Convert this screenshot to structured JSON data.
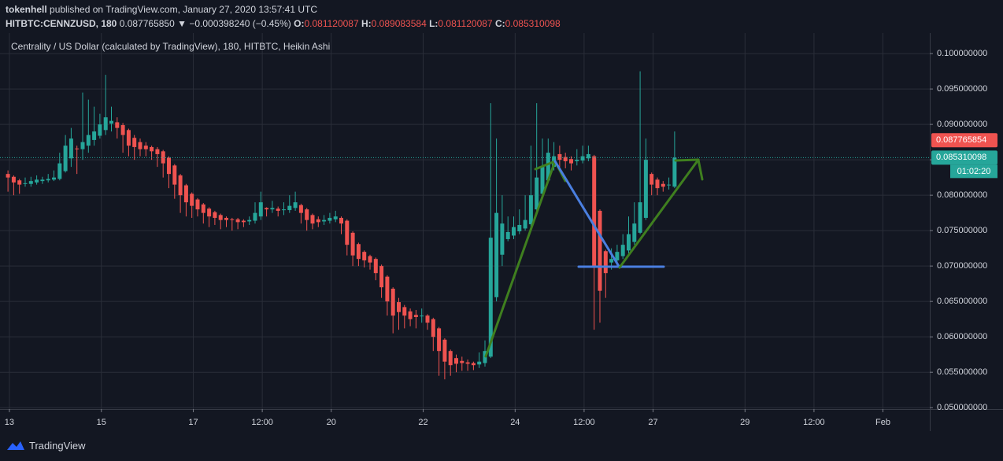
{
  "header": {
    "author": "tokenhell",
    "published": "published on TradingView.com, January 27, 2020 13:57:41 UTC",
    "symbol": "HITBTC:CENNZUSD, 180",
    "price": "0.087765850",
    "change": "▼ −0.000398240 (−0.45%)",
    "o_label": "O:",
    "o": "0.081120087",
    "h_label": "H:",
    "h": "0.089083584",
    "l_label": "L:",
    "l": "0.081120087",
    "c_label": "C:",
    "c": "0.085310098"
  },
  "chart_data": {
    "type": "candlestick",
    "title": "Centrality / US Dollar (calculated by TradingView), 180, HITBTC, Heikin Ashi",
    "up_color": "#26a69a",
    "down_color": "#ef5350",
    "grid": true,
    "xlim": [
      -0.7,
      160.4
    ],
    "ylim": [
      0.0498,
      0.1029
    ],
    "xticks": [
      {
        "value": 0.25,
        "label": "13"
      },
      {
        "value": 16.25,
        "label": "15"
      },
      {
        "value": 32.25,
        "label": "17"
      },
      {
        "value": 44.25,
        "label": "12:00"
      },
      {
        "value": 56.25,
        "label": "20"
      },
      {
        "value": 72.25,
        "label": "22"
      },
      {
        "value": 88.25,
        "label": "24"
      },
      {
        "value": 100.25,
        "label": "12:00"
      },
      {
        "value": 112.25,
        "label": "27"
      },
      {
        "value": 128.25,
        "label": "29"
      },
      {
        "value": 140.25,
        "label": "12:00"
      },
      {
        "value": 152.25,
        "label": "Feb"
      }
    ],
    "yticks": [
      {
        "value": 0.05,
        "label": "0.050000000"
      },
      {
        "value": 0.055,
        "label": "0.055000000"
      },
      {
        "value": 0.06,
        "label": "0.060000000"
      },
      {
        "value": 0.065,
        "label": "0.065000000"
      },
      {
        "value": 0.07,
        "label": "0.070000000"
      },
      {
        "value": 0.075,
        "label": "0.075000000"
      },
      {
        "value": 0.08,
        "label": "0.080000000"
      },
      {
        "value": 0.085,
        "label": "0.085000000"
      },
      {
        "value": 0.09,
        "label": "0.090000000"
      },
      {
        "value": 0.095,
        "label": "0.095000000"
      },
      {
        "value": 0.1,
        "label": "0.100000000"
      }
    ],
    "price_markers": [
      {
        "value": 0.087765854,
        "color": "#ef5350"
      },
      {
        "value": 0.085310098,
        "color": "#26a69a"
      }
    ],
    "countdown": "01:02:20",
    "ohlc": [
      [
        0.083,
        0.0835,
        0.0805,
        0.0825
      ],
      [
        0.0826,
        0.0828,
        0.08,
        0.0818
      ],
      [
        0.0821,
        0.0823,
        0.0802,
        0.0815
      ],
      [
        0.0816,
        0.0825,
        0.0812,
        0.0817
      ],
      [
        0.0816,
        0.0826,
        0.0812,
        0.082
      ],
      [
        0.0818,
        0.0828,
        0.0815,
        0.0822
      ],
      [
        0.082,
        0.0826,
        0.0816,
        0.0822
      ],
      [
        0.0821,
        0.083,
        0.0818,
        0.0823
      ],
      [
        0.0822,
        0.0835,
        0.082,
        0.0825
      ],
      [
        0.0823,
        0.086,
        0.0821,
        0.0845
      ],
      [
        0.0834,
        0.0885,
        0.0832,
        0.087
      ],
      [
        0.0852,
        0.0895,
        0.084,
        0.088
      ],
      [
        0.0866,
        0.087,
        0.083,
        0.0865
      ],
      [
        0.0865,
        0.0945,
        0.085,
        0.0875
      ],
      [
        0.087,
        0.0935,
        0.086,
        0.0885
      ],
      [
        0.0878,
        0.0925,
        0.087,
        0.089
      ],
      [
        0.0884,
        0.0915,
        0.088,
        0.09
      ],
      [
        0.0892,
        0.097,
        0.0885,
        0.091
      ],
      [
        0.0901,
        0.0925,
        0.089,
        0.0905
      ],
      [
        0.0903,
        0.091,
        0.088,
        0.0895
      ],
      [
        0.0899,
        0.0902,
        0.086,
        0.0885
      ],
      [
        0.0892,
        0.0894,
        0.0855,
        0.087
      ],
      [
        0.0881,
        0.0885,
        0.085,
        0.0868
      ],
      [
        0.0875,
        0.088,
        0.0855,
        0.0865
      ],
      [
        0.087,
        0.0875,
        0.0855,
        0.0865
      ],
      [
        0.0868,
        0.087,
        0.085,
        0.0862
      ],
      [
        0.0865,
        0.0868,
        0.084,
        0.0858
      ],
      [
        0.0862,
        0.0864,
        0.0825,
        0.0845
      ],
      [
        0.0853,
        0.0855,
        0.081,
        0.083
      ],
      [
        0.0842,
        0.0844,
        0.0795,
        0.0815
      ],
      [
        0.0828,
        0.083,
        0.0775,
        0.08
      ],
      [
        0.0814,
        0.0816,
        0.077,
        0.079
      ],
      [
        0.0802,
        0.0804,
        0.0768,
        0.0785
      ],
      [
        0.0794,
        0.0796,
        0.077,
        0.078
      ],
      [
        0.0787,
        0.0789,
        0.076,
        0.0775
      ],
      [
        0.0781,
        0.0783,
        0.0755,
        0.077
      ],
      [
        0.0776,
        0.0778,
        0.0758,
        0.0768
      ],
      [
        0.0772,
        0.0774,
        0.0752,
        0.0765
      ],
      [
        0.0768,
        0.077,
        0.0755,
        0.0765
      ],
      [
        0.0766,
        0.0768,
        0.075,
        0.0765
      ],
      [
        0.0766,
        0.0768,
        0.0752,
        0.0762
      ],
      [
        0.0764,
        0.0766,
        0.0755,
        0.0762
      ],
      [
        0.0763,
        0.077,
        0.0758,
        0.0765
      ],
      [
        0.0764,
        0.079,
        0.076,
        0.0775
      ],
      [
        0.077,
        0.0805,
        0.0765,
        0.079
      ],
      [
        0.0782,
        0.0783,
        0.077,
        0.078
      ],
      [
        0.078,
        0.0792,
        0.0775,
        0.0782
      ],
      [
        0.0781,
        0.0784,
        0.077,
        0.0778
      ],
      [
        0.0779,
        0.079,
        0.0772,
        0.078
      ],
      [
        0.0779,
        0.08,
        0.0775,
        0.0785
      ],
      [
        0.0782,
        0.0805,
        0.0778,
        0.079
      ],
      [
        0.0786,
        0.0788,
        0.076,
        0.0775
      ],
      [
        0.078,
        0.0782,
        0.075,
        0.0765
      ],
      [
        0.0772,
        0.0774,
        0.0752,
        0.076
      ],
      [
        0.0766,
        0.077,
        0.0755,
        0.0762
      ],
      [
        0.0763,
        0.0772,
        0.0758,
        0.0765
      ],
      [
        0.0764,
        0.0775,
        0.076,
        0.0768
      ],
      [
        0.0766,
        0.0778,
        0.0762,
        0.077
      ],
      [
        0.0768,
        0.077,
        0.0745,
        0.076
      ],
      [
        0.0764,
        0.0766,
        0.0715,
        0.073
      ],
      [
        0.0747,
        0.0749,
        0.07,
        0.0715
      ],
      [
        0.0731,
        0.0733,
        0.07,
        0.071
      ],
      [
        0.072,
        0.0722,
        0.0698,
        0.0708
      ],
      [
        0.0714,
        0.0716,
        0.0695,
        0.0705
      ],
      [
        0.071,
        0.0712,
        0.068,
        0.069
      ],
      [
        0.07,
        0.0702,
        0.0655,
        0.067
      ],
      [
        0.0685,
        0.0687,
        0.063,
        0.065
      ],
      [
        0.0668,
        0.067,
        0.0605,
        0.063
      ],
      [
        0.0649,
        0.0655,
        0.061,
        0.0635
      ],
      [
        0.0642,
        0.0645,
        0.0612,
        0.063
      ],
      [
        0.0636,
        0.064,
        0.0615,
        0.0625
      ],
      [
        0.0631,
        0.0638,
        0.0612,
        0.0628
      ],
      [
        0.0629,
        0.064,
        0.062,
        0.063
      ],
      [
        0.063,
        0.0632,
        0.061,
        0.062
      ],
      [
        0.0625,
        0.0627,
        0.058,
        0.06
      ],
      [
        0.0612,
        0.0614,
        0.0545,
        0.058
      ],
      [
        0.0596,
        0.0598,
        0.054,
        0.0565
      ],
      [
        0.058,
        0.0582,
        0.0545,
        0.056
      ],
      [
        0.057,
        0.0575,
        0.055,
        0.0562
      ],
      [
        0.0566,
        0.0572,
        0.0552,
        0.0563
      ],
      [
        0.0564,
        0.0568,
        0.0552,
        0.0562
      ],
      [
        0.0563,
        0.0565,
        0.0553,
        0.056
      ],
      [
        0.0561,
        0.0578,
        0.0556,
        0.0565
      ],
      [
        0.0563,
        0.0595,
        0.0558,
        0.058
      ],
      [
        0.0572,
        0.093,
        0.057,
        0.074
      ],
      [
        0.0656,
        0.088,
        0.065,
        0.0775
      ],
      [
        0.0716,
        0.08,
        0.07,
        0.076
      ],
      [
        0.0738,
        0.077,
        0.0735,
        0.0748
      ],
      [
        0.0743,
        0.077,
        0.0738,
        0.0755
      ],
      [
        0.0749,
        0.078,
        0.0745,
        0.0758
      ],
      [
        0.0753,
        0.08,
        0.075,
        0.0765
      ],
      [
        0.0759,
        0.087,
        0.0755,
        0.08
      ],
      [
        0.078,
        0.093,
        0.0775,
        0.0825
      ],
      [
        0.0802,
        0.088,
        0.0798,
        0.084
      ],
      [
        0.0821,
        0.088,
        0.0818,
        0.086
      ],
      [
        0.084,
        0.0875,
        0.0835,
        0.0855
      ],
      [
        0.0858,
        0.087,
        0.084,
        0.085
      ],
      [
        0.0854,
        0.086,
        0.0838,
        0.0848
      ],
      [
        0.0851,
        0.0855,
        0.0835,
        0.0845
      ],
      [
        0.0848,
        0.0865,
        0.0842,
        0.085
      ],
      [
        0.0849,
        0.087,
        0.0845,
        0.0855
      ],
      [
        0.0852,
        0.087,
        0.0848,
        0.0858
      ],
      [
        0.0855,
        0.0857,
        0.061,
        0.07
      ],
      [
        0.0778,
        0.078,
        0.062,
        0.0665
      ],
      [
        0.0721,
        0.0723,
        0.0655,
        0.069
      ],
      [
        0.0705,
        0.0725,
        0.0695,
        0.071
      ],
      [
        0.0708,
        0.073,
        0.07,
        0.072
      ],
      [
        0.0714,
        0.0745,
        0.071,
        0.073
      ],
      [
        0.0722,
        0.077,
        0.0718,
        0.0745
      ],
      [
        0.0734,
        0.079,
        0.073,
        0.076
      ],
      [
        0.0747,
        0.0975,
        0.0745,
        0.079
      ],
      [
        0.0768,
        0.088,
        0.0765,
        0.085
      ],
      [
        0.083,
        0.0832,
        0.08,
        0.0815
      ],
      [
        0.0822,
        0.0825,
        0.08,
        0.081
      ],
      [
        0.0816,
        0.082,
        0.0805,
        0.0812
      ],
      [
        0.0814,
        0.0825,
        0.0808,
        0.0815
      ],
      [
        0.0812,
        0.089,
        0.081,
        0.0853
      ]
    ]
  },
  "footer": {
    "brand": "TradingView"
  }
}
